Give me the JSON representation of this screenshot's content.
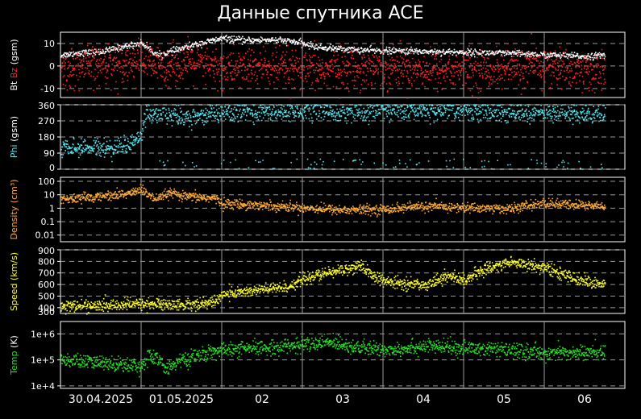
{
  "title": "Данные спутника ACE",
  "colors": {
    "background": "#000000",
    "frame": "#ffffff",
    "grid": "#9a9a9a",
    "bt": "#ffffff",
    "bz": "#ff2020",
    "phi": "#55e6f0",
    "density": "#ffaa33",
    "speed": "#ffff22",
    "temp": "#22e022"
  },
  "x_axis": {
    "tick_labels": [
      "30.04.2025",
      "01.05.2025",
      "02",
      "03",
      "04",
      "05",
      "06"
    ]
  },
  "chart_data": [
    {
      "type": "scatter",
      "ylabel_parts": [
        {
          "text": "Bt",
          "color": "#ffffff"
        },
        {
          "text": "Bz",
          "color": "#ff2020"
        },
        {
          "text": "(gsm)",
          "color": "#ffffff"
        }
      ],
      "ylim": [
        -14,
        15
      ],
      "scale": "linear",
      "yticks": [
        {
          "value": 10,
          "label": "10"
        },
        {
          "value": 0,
          "label": "0"
        },
        {
          "value": -10,
          "label": "-10"
        }
      ],
      "series": [
        {
          "name": "Bt",
          "color": "#ffffff",
          "t": [
            0,
            0.2,
            0.5,
            0.8,
            1.0,
            1.2,
            1.4,
            1.7,
            2.0,
            2.3,
            2.6,
            2.9,
            3.2,
            3.6,
            4.0,
            4.4,
            4.8,
            5.2,
            5.6,
            6.0,
            6.5,
            6.75
          ],
          "y": [
            5,
            6,
            6.5,
            9,
            10.5,
            5,
            7,
            10,
            12.5,
            11.5,
            12,
            11,
            8.5,
            7.5,
            7,
            6.8,
            6.5,
            6.2,
            5.8,
            5.2,
            4.5,
            5
          ],
          "noise": 0.7,
          "density": 0.7
        },
        {
          "name": "Bz",
          "color": "#ff2020",
          "t": [
            0,
            0.5,
            1.0,
            1.2,
            1.6,
            2.0,
            2.5,
            3.0,
            3.5,
            4.0,
            4.5,
            5.0,
            5.5,
            6.0,
            6.75
          ],
          "y": [
            -2,
            1,
            3,
            0,
            2,
            -1,
            0,
            -2,
            -1,
            0,
            -1,
            -2,
            -1,
            0,
            -3
          ],
          "noise": 4.2,
          "density": 1.0
        }
      ]
    },
    {
      "type": "scatter",
      "ylabel_parts": [
        {
          "text": "Phi",
          "color": "#55e6f0"
        },
        {
          "text": "(gsm)",
          "color": "#ffffff"
        }
      ],
      "ylim": [
        0,
        360
      ],
      "scale": "linear",
      "yticks": [
        {
          "value": 360,
          "label": "360"
        },
        {
          "value": 270,
          "label": "270"
        },
        {
          "value": 180,
          "label": "180"
        },
        {
          "value": 90,
          "label": "90"
        },
        {
          "value": 0,
          "label": "0"
        }
      ],
      "series": [
        {
          "name": "Phi",
          "color": "#55e6f0",
          "t": [
            0,
            0.3,
            0.6,
            0.9,
            1.0,
            1.05,
            1.2,
            1.6,
            2.0,
            2.5,
            3.0,
            3.5,
            4.0,
            4.5,
            5.0,
            5.5,
            6.0,
            6.5,
            6.75
          ],
          "y": [
            110,
            130,
            120,
            150,
            200,
            320,
            310,
            300,
            320,
            325,
            330,
            320,
            330,
            325,
            330,
            320,
            320,
            315,
            300
          ],
          "noise": 25,
          "density": 0.9,
          "scatter_low": [
            5,
            60
          ],
          "scatter_prob": 0.07
        }
      ]
    },
    {
      "type": "scatter",
      "ylabel_parts": [
        {
          "text": "Density",
          "color": "#ffaa33"
        },
        {
          "text": "(cm³)",
          "color": "#ffaa33"
        }
      ],
      "ylim": [
        0.0032,
        200
      ],
      "scale": "log",
      "yticks": [
        {
          "value": 100,
          "label": "100"
        },
        {
          "value": 10,
          "label": "10"
        },
        {
          "value": 1,
          "label": "1"
        },
        {
          "value": 0.1,
          "label": "0.1"
        },
        {
          "value": 0.01,
          "label": "0.01"
        }
      ],
      "series": [
        {
          "name": "Density",
          "color": "#ffaa33",
          "t": [
            0,
            0.4,
            0.8,
            1.0,
            1.1,
            1.2,
            1.35,
            1.5,
            1.9,
            2.0,
            2.5,
            3.0,
            3.5,
            4.0,
            4.5,
            5.0,
            5.6,
            6.0,
            6.75
          ],
          "y": [
            5,
            7,
            12,
            25,
            8,
            4,
            15,
            8,
            6,
            2.5,
            1.8,
            1.2,
            0.8,
            0.9,
            1.5,
            1.2,
            1.0,
            2.5,
            1.5
          ],
          "noise": 0.35,
          "density": 0.9
        }
      ]
    },
    {
      "type": "scatter",
      "ylabel_parts": [
        {
          "text": "Speed",
          "color": "#ffff22"
        },
        {
          "text": "(km/s)",
          "color": "#ffff22"
        }
      ],
      "ylim": [
        350,
        900
      ],
      "scale": "linear",
      "yticks": [
        {
          "value": 900,
          "label": "900"
        },
        {
          "value": 800,
          "label": "800"
        },
        {
          "value": 700,
          "label": "700"
        },
        {
          "value": 600,
          "label": "600"
        },
        {
          "value": 500,
          "label": "500"
        },
        {
          "value": 400,
          "label": "400"
        },
        {
          "value": 300,
          "label": "300"
        }
      ],
      "series": [
        {
          "name": "Speed",
          "color": "#ffff22",
          "t": [
            0,
            0.5,
            1.0,
            1.5,
            1.9,
            2.0,
            2.5,
            2.8,
            3.0,
            3.4,
            3.7,
            4.0,
            4.5,
            4.8,
            5.0,
            5.3,
            5.6,
            6.0,
            6.4,
            6.75
          ],
          "y": [
            420,
            420,
            440,
            430,
            450,
            520,
            560,
            580,
            650,
            720,
            760,
            630,
            600,
            680,
            640,
            750,
            800,
            750,
            650,
            600
          ],
          "noise": 25,
          "density": 0.9
        }
      ]
    },
    {
      "type": "scatter",
      "ylabel_parts": [
        {
          "text": "Temp",
          "color": "#22e022"
        },
        {
          "text": "(K)",
          "color": "#ffffff"
        }
      ],
      "ylim": [
        8000,
        3000000
      ],
      "scale": "log",
      "yticks": [
        {
          "value": 1000000,
          "label": "1e+6"
        },
        {
          "value": 100000,
          "label": "1e+5"
        },
        {
          "value": 10000,
          "label": "1e+4"
        }
      ],
      "series": [
        {
          "name": "Temp",
          "color": "#22e022",
          "t": [
            0,
            0.5,
            1.0,
            1.1,
            1.3,
            1.6,
            2.0,
            2.5,
            3.0,
            3.4,
            3.7,
            4.0,
            4.5,
            5.0,
            5.5,
            6.0,
            6.75
          ],
          "y": [
            100000,
            80000,
            60000,
            150000,
            50000,
            120000,
            250000,
            300000,
            400000,
            500000,
            300000,
            250000,
            350000,
            300000,
            250000,
            200000,
            200000
          ],
          "noise": 0.28,
          "density": 0.9
        }
      ]
    }
  ]
}
